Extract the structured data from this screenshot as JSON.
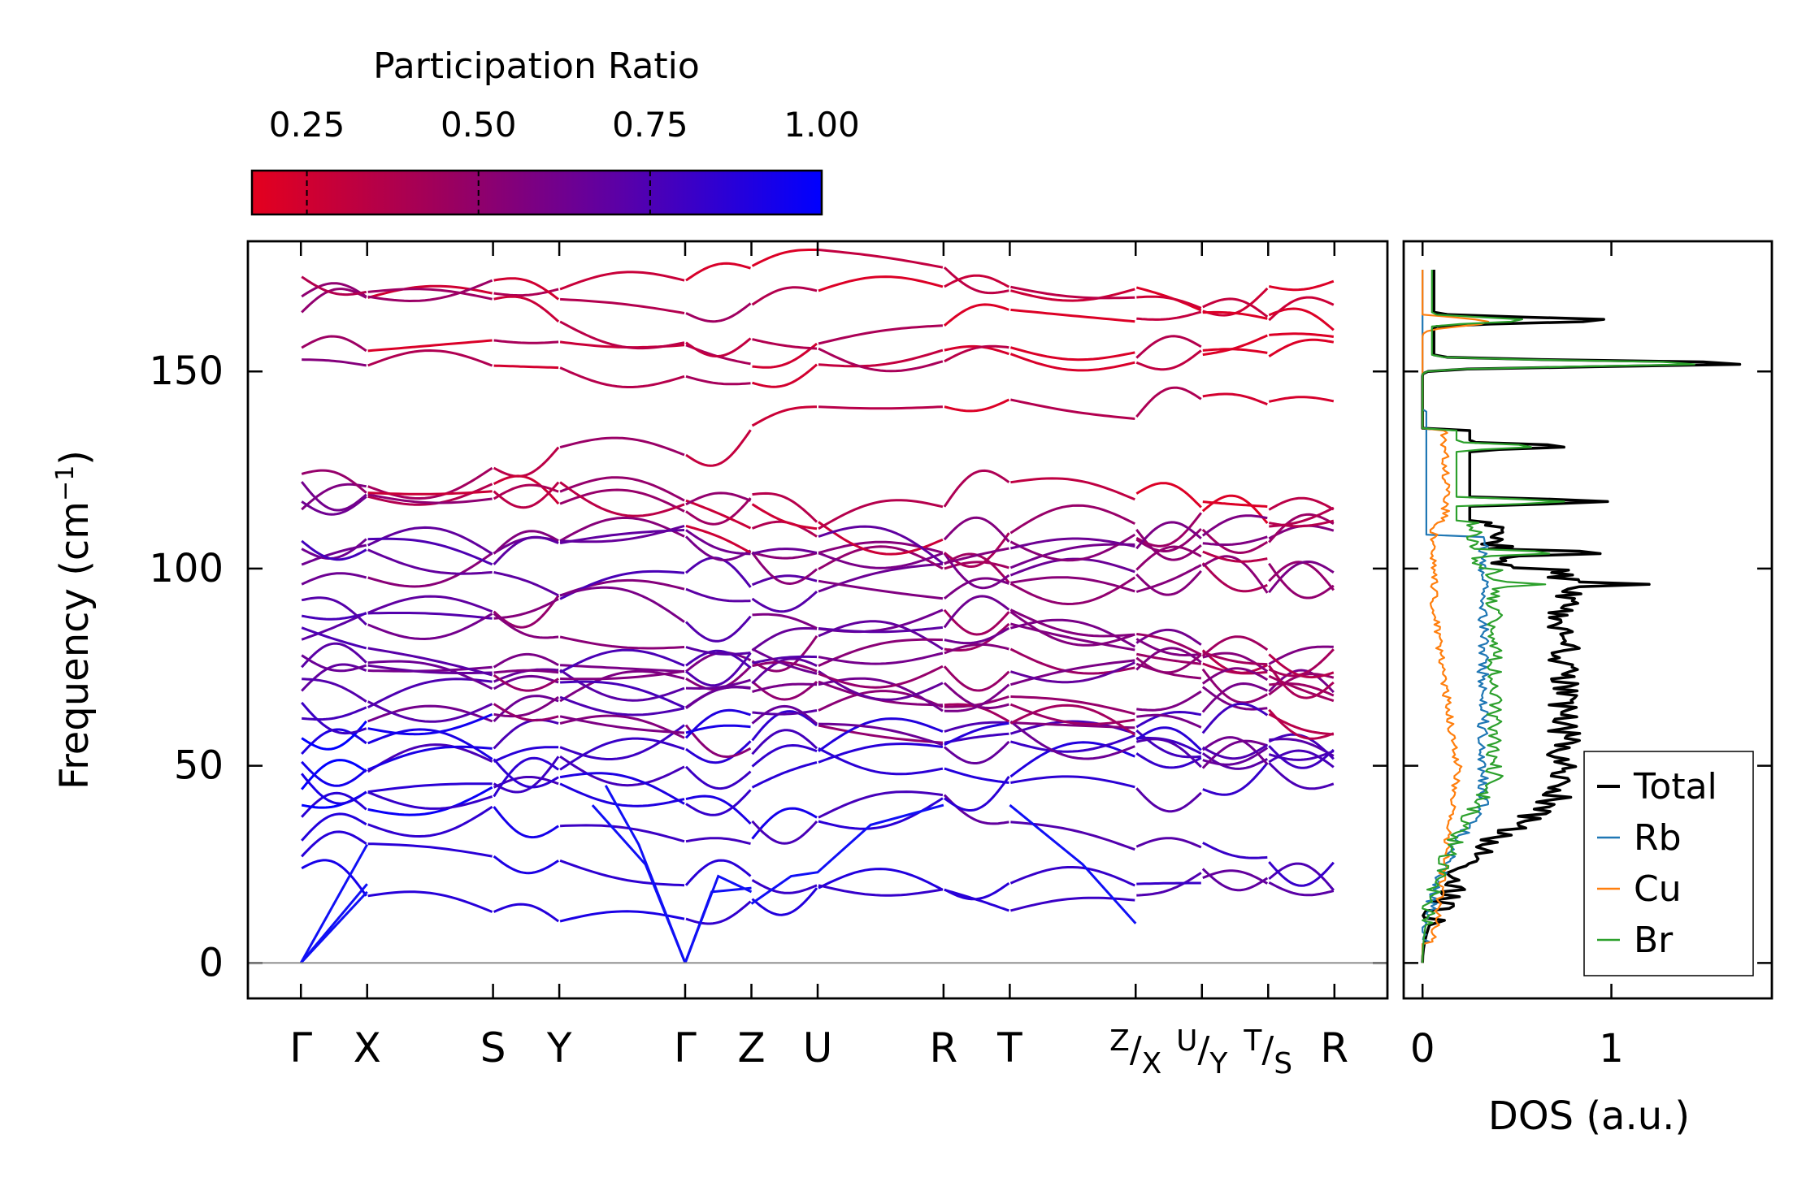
{
  "chart_data": [
    {
      "type": "line",
      "title": "",
      "ylabel": "Frequency (cm",
      "ylabel_sup": "−1",
      "ylabel_close": ")",
      "ylim": [
        -9,
        183
      ],
      "yticks": [
        0,
        50,
        100,
        150
      ],
      "xticks": [
        {
          "label": "Γ",
          "x": 0
        },
        {
          "label": "X",
          "x": 0.5
        },
        {
          "label": "S",
          "x": 1.45
        },
        {
          "label": "Y",
          "x": 1.95
        },
        {
          "label": "Γ",
          "x": 2.9
        },
        {
          "label": "Z",
          "x": 3.4
        },
        {
          "label": "U",
          "x": 3.9
        },
        {
          "label": "R",
          "x": 4.85
        },
        {
          "label": "T",
          "x": 5.35
        },
        {
          "label": "Z/X",
          "x": 6.3
        },
        {
          "label": "U/Y",
          "x": 6.8
        },
        {
          "label": "T/S",
          "x": 7.3
        },
        {
          "label": "R",
          "x": 7.8
        }
      ],
      "xlim": [
        -0.4,
        8.2
      ],
      "segments": [
        {
          "from": 0,
          "to": 0.5,
          "pr": 0.72
        },
        {
          "from": 0.5,
          "to": 1.45,
          "pr": 0.6
        },
        {
          "from": 1.45,
          "to": 1.95,
          "pr": 0.55
        },
        {
          "from": 1.95,
          "to": 2.9,
          "pr": 0.62
        },
        {
          "from": 2.9,
          "to": 3.4,
          "pr": 0.6
        },
        {
          "from": 3.4,
          "to": 3.9,
          "pr": 0.58
        },
        {
          "from": 3.9,
          "to": 4.85,
          "pr": 0.55
        },
        {
          "from": 4.85,
          "to": 5.35,
          "pr": 0.5
        },
        {
          "from": 5.35,
          "to": 6.3,
          "pr": 0.52
        },
        {
          "from": 6.3,
          "to": 6.8,
          "pr": 0.5
        },
        {
          "from": 6.8,
          "to": 7.3,
          "pr": 0.45
        },
        {
          "from": 7.3,
          "to": 7.8,
          "pr": 0.45
        }
      ],
      "acoustic_branches": [
        {
          "points": [
            [
              0,
              0
            ],
            [
              0.5,
              18
            ]
          ]
        },
        {
          "points": [
            [
              0,
              0
            ],
            [
              0.5,
              20
            ]
          ]
        },
        {
          "points": [
            [
              0,
              0
            ],
            [
              0.5,
              30
            ]
          ]
        },
        {
          "points": [
            [
              2.9,
              0
            ],
            [
              2.55,
              30
            ],
            [
              2.3,
              45
            ]
          ]
        },
        {
          "points": [
            [
              2.9,
              0
            ],
            [
              2.6,
              25
            ],
            [
              2.2,
              40
            ]
          ]
        },
        {
          "points": [
            [
              2.9,
              0
            ],
            [
              3.1,
              18
            ],
            [
              3.4,
              19
            ]
          ]
        },
        {
          "points": [
            [
              2.9,
              0
            ],
            [
              3.15,
              22
            ],
            [
              3.4,
              18
            ]
          ]
        },
        {
          "points": [
            [
              3.4,
              15
            ],
            [
              3.7,
              22
            ],
            [
              3.9,
              23
            ],
            [
              4.3,
              35
            ],
            [
              4.85,
              40
            ]
          ]
        },
        {
          "points": [
            [
              5.35,
              40
            ],
            [
              5.9,
              25
            ],
            [
              6.3,
              10
            ]
          ]
        }
      ],
      "bands_at_gamma": [
        24,
        27,
        31,
        37,
        40,
        44,
        48,
        51,
        53,
        57,
        62,
        66,
        69,
        72,
        75,
        78,
        82,
        85,
        88,
        92,
        96,
        101,
        105,
        107,
        115,
        117,
        122,
        124,
        153,
        156,
        165,
        169,
        174
      ],
      "colorbar": {
        "label": "Participation Ratio",
        "ticks": [
          "0.25",
          "0.50",
          "0.75",
          "1.00"
        ],
        "tick_values": [
          0.25,
          0.5,
          0.75,
          1.0
        ],
        "range": [
          0.17,
          1.0
        ],
        "colors": [
          "#e4001e",
          "#0000ff"
        ]
      }
    },
    {
      "type": "line",
      "xlabel": "DOS (a.u.)",
      "xlim": [
        -0.1,
        1.85
      ],
      "ylim": [
        -9,
        183
      ],
      "xticks": [
        0,
        1
      ],
      "series": [
        {
          "name": "Total",
          "color": "#000000",
          "width": 3.5
        },
        {
          "name": "Rb",
          "color": "#1f77b4",
          "width": 2.2
        },
        {
          "name": "Cu",
          "color": "#ff7f0e",
          "width": 2.2
        },
        {
          "name": "Br",
          "color": "#2ca02c",
          "width": 2.2
        }
      ],
      "peaks": [
        {
          "freq": 163,
          "total": 1.0,
          "br": 0.55
        },
        {
          "freq": 152,
          "total": 1.75,
          "br": 1.5
        },
        {
          "freq": 131,
          "total": 0.78,
          "br": 0.6
        },
        {
          "freq": 117,
          "total": 0.98,
          "br": 0.75
        },
        {
          "freq": 104,
          "total": 0.98,
          "br": 0.7
        },
        {
          "freq": 96,
          "total": 1.2,
          "br": 0.65
        }
      ],
      "legend_location": "lower-right"
    }
  ]
}
